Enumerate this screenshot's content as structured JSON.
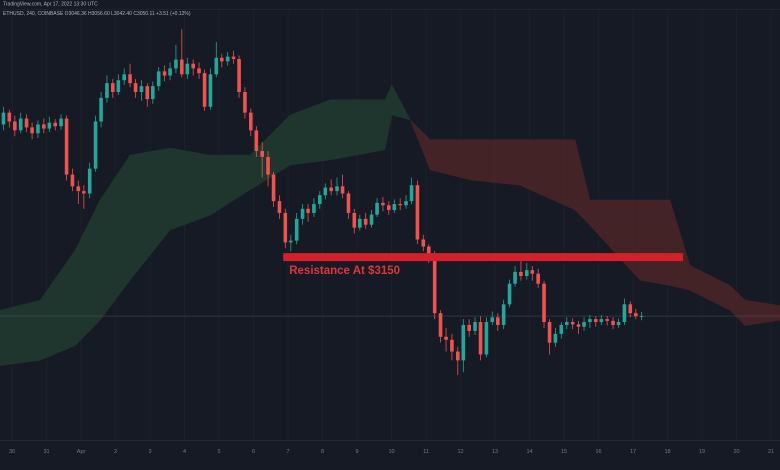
{
  "chart_data": {
    "type": "candlestick",
    "watermark": "TradingView.com, Apr 17, 2022 13:30 UTC",
    "legend": "ETHUSD, 240, COINBASE  O3046.36 H3056.60 L3042.40 C3050.11 +3.51 (+0.12%)",
    "xlim": [
      -0.35,
      22.26
    ],
    "ylim": [
      2840,
      3586
    ],
    "xticks": [
      {
        "value": 0,
        "label": "30"
      },
      {
        "value": 1,
        "label": "31"
      },
      {
        "value": 2,
        "label": "Apr"
      },
      {
        "value": 3,
        "label": "2"
      },
      {
        "value": 4,
        "label": "3"
      },
      {
        "value": 5,
        "label": "4"
      },
      {
        "value": 6,
        "label": "5"
      },
      {
        "value": 7,
        "label": "6"
      },
      {
        "value": 8,
        "label": "7"
      },
      {
        "value": 9,
        "label": "8"
      },
      {
        "value": 10,
        "label": "9"
      },
      {
        "value": 11,
        "label": "10"
      },
      {
        "value": 12,
        "label": "11"
      },
      {
        "value": 13,
        "label": "12"
      },
      {
        "value": 14,
        "label": "13"
      },
      {
        "value": 15,
        "label": "14"
      },
      {
        "value": 16,
        "label": "15"
      },
      {
        "value": 17,
        "label": "16"
      },
      {
        "value": 18,
        "label": "17"
      },
      {
        "value": 19,
        "label": "18"
      },
      {
        "value": 20,
        "label": "19"
      },
      {
        "value": 21,
        "label": "20"
      },
      {
        "value": 22,
        "label": "21"
      }
    ],
    "grid": true,
    "up_color": "#26a69a",
    "down_color": "#ef5350",
    "candles": {
      "x": [
        -0.25,
        -0.08,
        0.08,
        0.25,
        0.42,
        0.58,
        0.75,
        0.92,
        1.08,
        1.25,
        1.42,
        1.58,
        1.75,
        1.92,
        2.08,
        2.25,
        2.42,
        2.58,
        2.75,
        2.92,
        3.08,
        3.25,
        3.42,
        3.58,
        3.75,
        3.92,
        4.08,
        4.25,
        4.42,
        4.58,
        4.75,
        4.92,
        5.08,
        5.25,
        5.42,
        5.58,
        5.75,
        5.92,
        6.08,
        6.25,
        6.42,
        6.58,
        6.75,
        6.92,
        7.08,
        7.25,
        7.42,
        7.58,
        7.75,
        7.92,
        8.08,
        8.25,
        8.42,
        8.58,
        8.75,
        8.92,
        9.08,
        9.25,
        9.42,
        9.58,
        9.75,
        9.92,
        10.08,
        10.25,
        10.42,
        10.58,
        10.75,
        10.92,
        11.08,
        11.25,
        11.42,
        11.58,
        11.75,
        11.92,
        12.08,
        12.25,
        12.42,
        12.58,
        12.75,
        12.92,
        13.08,
        13.25,
        13.42,
        13.58,
        13.75,
        13.92,
        14.08,
        14.25,
        14.42,
        14.58,
        14.75,
        14.92,
        15.08,
        15.25,
        15.42,
        15.58,
        15.75,
        15.92,
        16.08,
        16.25,
        16.42,
        16.58,
        16.75,
        16.92,
        17.08,
        17.25,
        17.42,
        17.58,
        17.75,
        17.92,
        18.08,
        18.25
      ],
      "open": [
        3375,
        3395,
        3380,
        3365,
        3385,
        3370,
        3360,
        3375,
        3368,
        3378,
        3372,
        3385,
        3290,
        3270,
        3262,
        3258,
        3300,
        3380,
        3420,
        3445,
        3430,
        3450,
        3460,
        3445,
        3430,
        3440,
        3418,
        3440,
        3465,
        3458,
        3470,
        3485,
        3460,
        3478,
        3470,
        3462,
        3405,
        3460,
        3488,
        3482,
        3490,
        3486,
        3430,
        3395,
        3365,
        3330,
        3320,
        3290,
        3245,
        3225,
        3175,
        3178,
        3215,
        3232,
        3225,
        3240,
        3255,
        3268,
        3262,
        3270,
        3258,
        3225,
        3200,
        3215,
        3205,
        3222,
        3242,
        3238,
        3230,
        3240,
        3238,
        3245,
        3272,
        3180,
        3168,
        3155,
        3055,
        3015,
        3010,
        2990,
        2975,
        3035,
        3025,
        3040,
        2985,
        3040,
        3048,
        3035,
        3070,
        3105,
        3125,
        3118,
        3128,
        3122,
        3105,
        3040,
        3005,
        3020,
        3035,
        3040,
        3036,
        3032,
        3040,
        3045,
        3040,
        3045,
        3042,
        3035,
        3040,
        3070,
        3055,
        3050
      ],
      "high": [
        3405,
        3400,
        3390,
        3395,
        3392,
        3378,
        3382,
        3385,
        3388,
        3384,
        3392,
        3390,
        3300,
        3280,
        3272,
        3310,
        3390,
        3430,
        3458,
        3452,
        3460,
        3470,
        3478,
        3452,
        3450,
        3445,
        3448,
        3472,
        3475,
        3480,
        3510,
        3536,
        3488,
        3485,
        3480,
        3468,
        3470,
        3515,
        3495,
        3498,
        3500,
        3492,
        3438,
        3402,
        3372,
        3345,
        3330,
        3295,
        3255,
        3232,
        3188,
        3225,
        3240,
        3240,
        3250,
        3262,
        3275,
        3282,
        3285,
        3290,
        3262,
        3232,
        3222,
        3225,
        3230,
        3250,
        3252,
        3245,
        3248,
        3250,
        3255,
        3285,
        3280,
        3188,
        3172,
        3160,
        3060,
        3030,
        3020,
        2998,
        3045,
        3045,
        3048,
        3050,
        3048,
        3058,
        3055,
        3078,
        3112,
        3135,
        3150,
        3140,
        3135,
        3130,
        3110,
        3045,
        3030,
        3040,
        3048,
        3046,
        3042,
        3048,
        3052,
        3050,
        3052,
        3050,
        3048,
        3046,
        3080,
        3075,
        3062,
        3057
      ],
      "low": [
        3365,
        3370,
        3355,
        3360,
        3362,
        3350,
        3352,
        3360,
        3362,
        3365,
        3366,
        3280,
        3262,
        3240,
        3232,
        3250,
        3295,
        3370,
        3412,
        3420,
        3425,
        3442,
        3438,
        3420,
        3415,
        3405,
        3410,
        3432,
        3448,
        3450,
        3462,
        3455,
        3452,
        3458,
        3452,
        3398,
        3400,
        3455,
        3472,
        3475,
        3478,
        3420,
        3385,
        3355,
        3320,
        3285,
        3270,
        3235,
        3215,
        3165,
        3160,
        3172,
        3205,
        3210,
        3218,
        3232,
        3248,
        3255,
        3255,
        3250,
        3215,
        3190,
        3195,
        3198,
        3200,
        3218,
        3228,
        3222,
        3225,
        3230,
        3232,
        3240,
        3172,
        3160,
        3140,
        3045,
        3005,
        2990,
        2975,
        2950,
        2955,
        3015,
        3018,
        2975,
        2980,
        3035,
        3025,
        3028,
        3065,
        3100,
        3110,
        3112,
        3110,
        3098,
        3030,
        2985,
        2998,
        3012,
        3028,
        3028,
        3020,
        3025,
        3030,
        3032,
        3035,
        3034,
        3028,
        3030,
        3035,
        3048,
        3045,
        3043
      ],
      "close": [
        3395,
        3380,
        3365,
        3385,
        3370,
        3360,
        3375,
        3368,
        3378,
        3372,
        3385,
        3290,
        3270,
        3262,
        3258,
        3300,
        3380,
        3420,
        3445,
        3430,
        3450,
        3460,
        3445,
        3430,
        3440,
        3418,
        3440,
        3465,
        3458,
        3470,
        3485,
        3460,
        3478,
        3470,
        3462,
        3405,
        3460,
        3488,
        3482,
        3490,
        3486,
        3430,
        3395,
        3365,
        3330,
        3320,
        3290,
        3245,
        3225,
        3175,
        3178,
        3215,
        3232,
        3225,
        3240,
        3255,
        3268,
        3262,
        3270,
        3258,
        3225,
        3200,
        3215,
        3205,
        3222,
        3242,
        3238,
        3230,
        3240,
        3238,
        3245,
        3272,
        3180,
        3168,
        3155,
        3055,
        3015,
        3010,
        2990,
        2975,
        3035,
        3025,
        3040,
        2985,
        3040,
        3048,
        3035,
        3070,
        3105,
        3125,
        3118,
        3128,
        3122,
        3105,
        3040,
        3005,
        3020,
        3035,
        3040,
        3036,
        3032,
        3040,
        3045,
        3040,
        3045,
        3042,
        3035,
        3040,
        3070,
        3055,
        3050,
        3050
      ]
    },
    "cloud": {
      "bull_color": "#1f3a2e",
      "bear_color": "#4a2528",
      "x": [
        -0.35,
        0.81,
        1.83,
        2.55,
        3.42,
        4.58,
        5.74,
        6.9,
        8.06,
        9.22,
        10.81,
        11.01,
        11.54,
        12.12,
        13.28,
        14.72,
        16.32,
        16.75,
        18.2,
        19.07,
        19.65,
        20.81,
        21.25,
        22.26
      ],
      "span_a": [
        3060,
        3077,
        3162,
        3247,
        3323,
        3335,
        3323,
        3323,
        3391,
        3417,
        3417,
        3442,
        3383,
        3298,
        3281,
        3272,
        3230,
        3204,
        3111,
        3102,
        3094,
        3060,
        3034,
        3043
      ],
      "span_b": [
        2966,
        2975,
        3000,
        3043,
        3111,
        3196,
        3221,
        3264,
        3306,
        3315,
        3332,
        3391,
        3383,
        3349,
        3349,
        3349,
        3349,
        3247,
        3247,
        3247,
        3136,
        3102,
        3077,
        3068
      ]
    },
    "resistance": {
      "label": "Resistance At $3150",
      "value": 3150,
      "x": [
        7.86,
        19.45
      ],
      "color": "#d3202a"
    },
    "price_line": 3050.11
  }
}
